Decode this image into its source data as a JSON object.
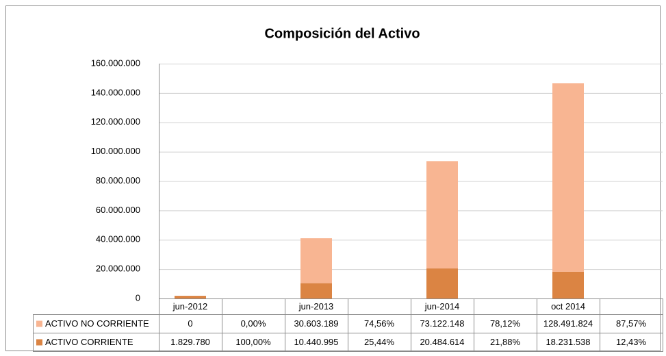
{
  "chart_data": {
    "type": "bar",
    "stacked": true,
    "title": "Composición del Activo",
    "categories": [
      "jun-2012",
      null,
      "jun-2013",
      null,
      "jun-2014",
      null,
      "oct 2014",
      null
    ],
    "series": [
      {
        "name": "ACTIVO NO CORRIENTE",
        "color": "#f8b592",
        "values": [
          0,
          0,
          30603189,
          74.56,
          73122148,
          78.12,
          128491824,
          87.57
        ],
        "value_labels": [
          "0",
          "0,00%",
          "30.603.189",
          "74,56%",
          "73.122.148",
          "78,12%",
          "128.491.824",
          "87,57%"
        ]
      },
      {
        "name": "ACTIVO CORRIENTE",
        "color": "#db8443",
        "values": [
          1829780,
          100,
          10440995,
          25.44,
          20484614,
          21.88,
          18231538,
          12.43
        ],
        "value_labels": [
          "1.829.780",
          "100,00%",
          "10.440.995",
          "25,44%",
          "20.484.614",
          "21,88%",
          "18.231.538",
          "12,43%"
        ]
      }
    ],
    "ylim": [
      0,
      160000000
    ],
    "yticks": [
      0,
      {
        "value": 20000000,
        "label": "20.000.000"
      },
      {
        "value": 40000000,
        "label": "40.000.000"
      },
      {
        "value": 60000000,
        "label": "60.000.000"
      },
      {
        "value": 80000000,
        "label": "80.000.000"
      },
      {
        "value": 100000000,
        "label": "100.000.000"
      },
      {
        "value": 120000000,
        "label": "120.000.000"
      },
      {
        "value": 140000000,
        "label": "140.000.000"
      },
      {
        "value": 160000000,
        "label": "160.000.000"
      }
    ],
    "grid": true
  }
}
